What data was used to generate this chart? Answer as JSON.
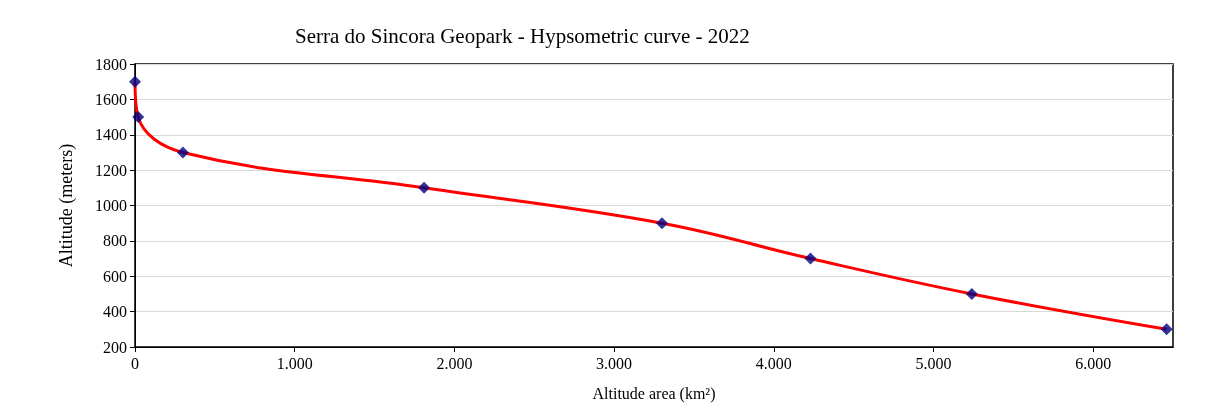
{
  "chart_data": {
    "type": "line",
    "title": "Serra do Sincora Geopark - Hypsometric curve - 2022",
    "xlabel": "Altitude area (km²)",
    "ylabel": "Altitude (meters)",
    "x": [
      0,
      20,
      300,
      1810,
      3300,
      4230,
      5240,
      6460
    ],
    "series": [
      {
        "color": "#ff0000",
        "marker": "none",
        "values": [
          1700,
          1500,
          1300,
          1100,
          900,
          700,
          500,
          300
        ]
      },
      {
        "type": "scatter",
        "color": "#000080",
        "marker": "diamond",
        "values": [
          1700,
          1500,
          1300,
          1100,
          900,
          700,
          500,
          300
        ]
      }
    ],
    "xlim": [
      0,
      6500
    ],
    "xticks": [
      0,
      {
        "value": 1000,
        "label": "1.000"
      },
      {
        "value": 2000,
        "label": "2.000"
      },
      {
        "value": 3000,
        "label": "3.000"
      },
      {
        "value": 4000,
        "label": "4.000"
      },
      {
        "value": 5000,
        "label": "5.000"
      },
      {
        "value": 6000,
        "label": "6.000"
      }
    ],
    "ylim": [
      200,
      1800
    ],
    "yticks": [
      200,
      400,
      600,
      800,
      1000,
      1200,
      1400,
      1600,
      1800
    ],
    "grid": "y"
  }
}
